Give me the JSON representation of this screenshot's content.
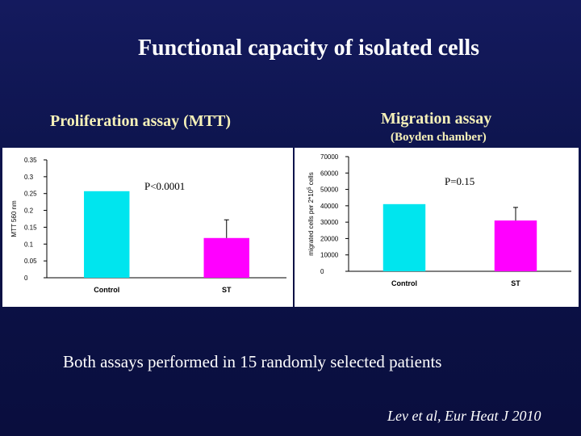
{
  "slide": {
    "title": "Functional capacity of isolated cells",
    "left_panel_title": "Proliferation assay (MTT)",
    "right_panel_title": "Migration assay",
    "right_panel_subtitle": "(Boyden chamber)",
    "footnote": "Both assays performed in 15 randomly selected patients",
    "citation": "Lev et al, Eur Heat J 2010"
  },
  "chart_data": [
    {
      "type": "bar",
      "categories": [
        "Control",
        "ST"
      ],
      "values": [
        0.257,
        0.118
      ],
      "error_upper": [
        null,
        0.172
      ],
      "ylabel": "MTT 560 nm",
      "ylim": [
        0,
        0.35
      ],
      "yticks": [
        "0",
        "0.05",
        "0.1",
        "0.15",
        "0.2",
        "0.25",
        "0.3",
        "0.35"
      ],
      "annotation": "P<0.0001",
      "bar_colors": [
        "#00e5ee",
        "#ff00ff"
      ],
      "grid": false
    },
    {
      "type": "bar",
      "categories": [
        "Control",
        "ST"
      ],
      "values": [
        41000,
        31000
      ],
      "error_upper": [
        null,
        39000
      ],
      "ylabel_main": "migrated cells per 2*10",
      "ylabel_exp": "5",
      "ylabel_tail": " cells",
      "ylim": [
        0,
        70000
      ],
      "yticks": [
        "0",
        "10000",
        "20000",
        "30000",
        "40000",
        "50000",
        "60000",
        "70000"
      ],
      "annotation": "P=0.15",
      "bar_colors": [
        "#00e5ee",
        "#ff00ff"
      ],
      "grid": false
    }
  ]
}
